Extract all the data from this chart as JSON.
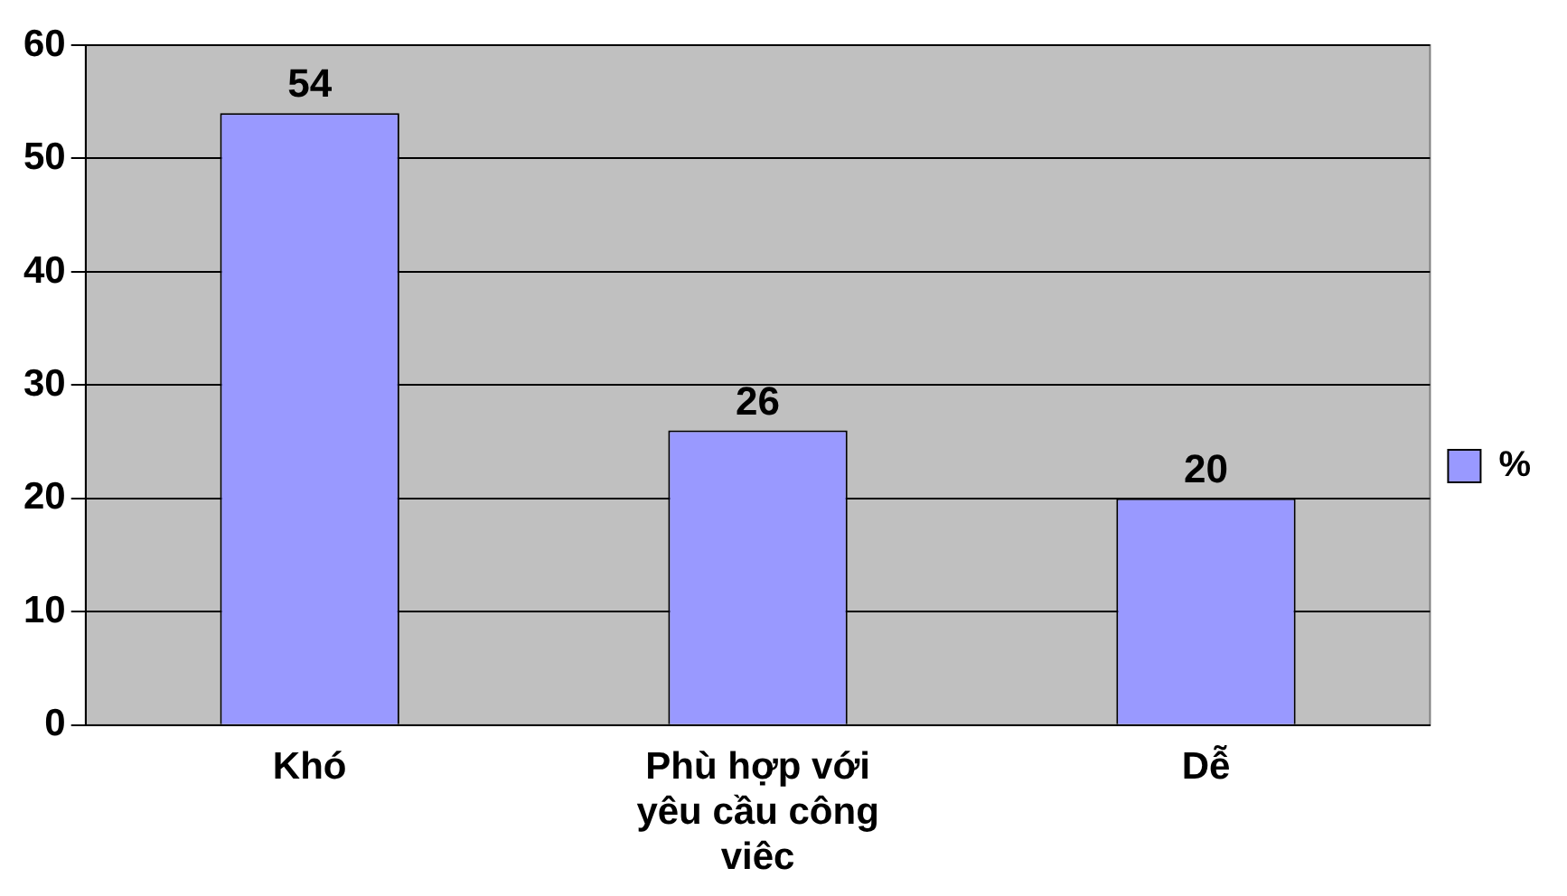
{
  "chart_data": {
    "type": "bar",
    "categories": [
      "Khó",
      "Phù hợp với yêu cầu công viêc",
      "Dễ"
    ],
    "series": [
      {
        "name": "%",
        "color": "#9999ff",
        "values": [
          54,
          26,
          20
        ]
      }
    ],
    "ylim": [
      0,
      60
    ],
    "yticks": [
      0,
      10,
      20,
      30,
      40,
      50,
      60
    ],
    "grid": "y",
    "legend": "right",
    "data_labels": true
  }
}
